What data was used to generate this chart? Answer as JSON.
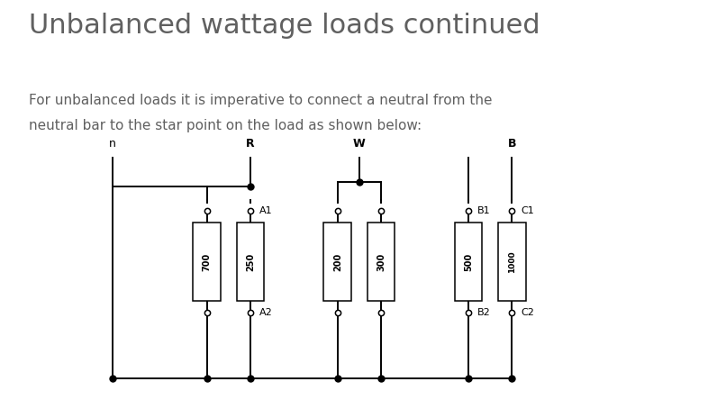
{
  "title": "Unbalanced wattage loads continued",
  "subtitle_line1": "For unbalanced loads it is imperative to connect a neutral from the",
  "subtitle_line2": "neutral bar to the star point on the load as shown below:",
  "title_fontsize": 22,
  "subtitle_fontsize": 11,
  "bg_color": "#ffffff",
  "text_color": "#606060",
  "line_color": "#000000",
  "bus_labels": [
    "n",
    "R",
    "W",
    "B"
  ],
  "resistor_values": [
    "700",
    "250",
    "200",
    "300",
    "500",
    "1000"
  ]
}
